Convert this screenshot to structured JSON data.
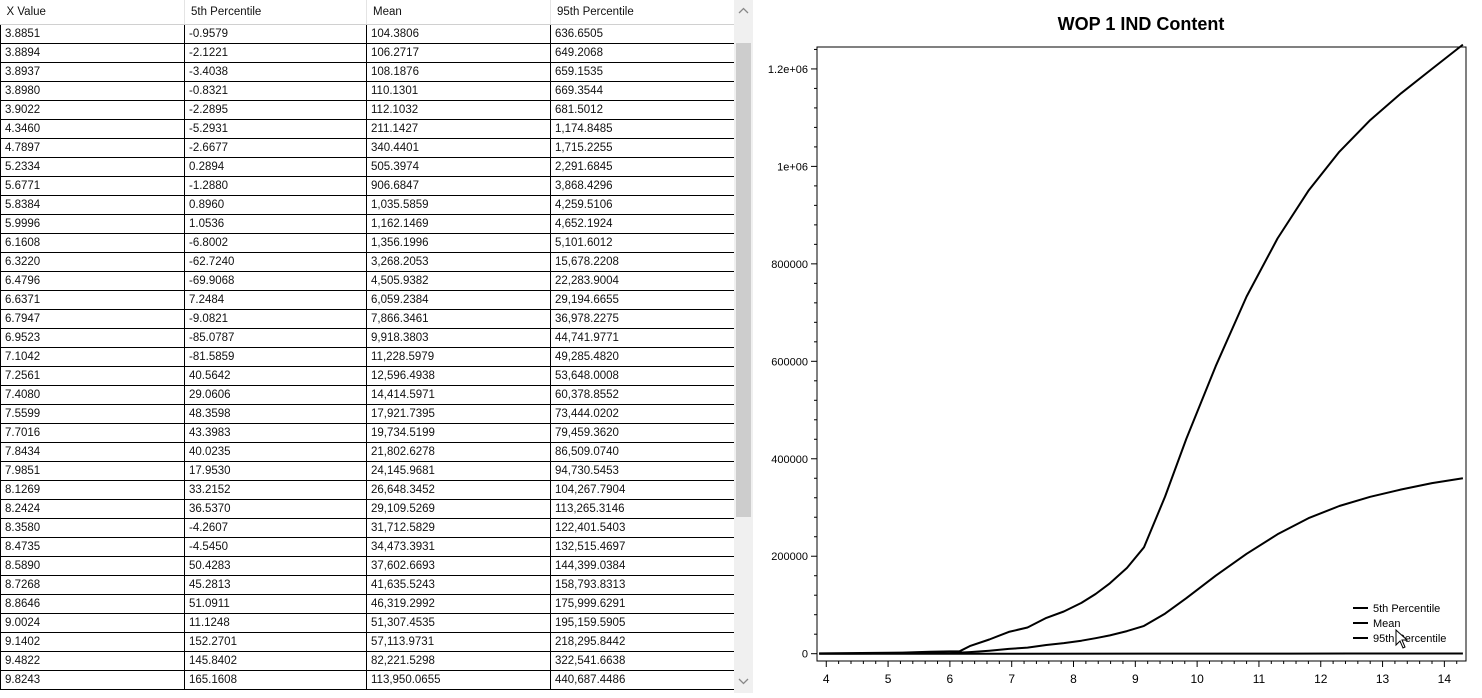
{
  "table": {
    "columns": [
      "X Value",
      "5th Percentile",
      "Mean",
      "95th Percentile"
    ],
    "rows": [
      [
        "3.8851",
        "-0.9579",
        "104.3806",
        "636.6505"
      ],
      [
        "3.8894",
        "-2.1221",
        "106.2717",
        "649.2068"
      ],
      [
        "3.8937",
        "-3.4038",
        "108.1876",
        "659.1535"
      ],
      [
        "3.8980",
        "-0.8321",
        "110.1301",
        "669.3544"
      ],
      [
        "3.9022",
        "-2.2895",
        "112.1032",
        "681.5012"
      ],
      [
        "4.3460",
        "-5.2931",
        "211.1427",
        "1,174.8485"
      ],
      [
        "4.7897",
        "-2.6677",
        "340.4401",
        "1,715.2255"
      ],
      [
        "5.2334",
        "0.2894",
        "505.3974",
        "2,291.6845"
      ],
      [
        "5.6771",
        "-1.2880",
        "906.6847",
        "3,868.4296"
      ],
      [
        "5.8384",
        "0.8960",
        "1,035.5859",
        "4,259.5106"
      ],
      [
        "5.9996",
        "1.0536",
        "1,162.1469",
        "4,652.1924"
      ],
      [
        "6.1608",
        "-6.8002",
        "1,356.1996",
        "5,101.6012"
      ],
      [
        "6.3220",
        "-62.7240",
        "3,268.2053",
        "15,678.2208"
      ],
      [
        "6.4796",
        "-69.9068",
        "4,505.9382",
        "22,283.9004"
      ],
      [
        "6.6371",
        "7.2484",
        "6,059.2384",
        "29,194.6655"
      ],
      [
        "6.7947",
        "-9.0821",
        "7,866.3461",
        "36,978.2275"
      ],
      [
        "6.9523",
        "-85.0787",
        "9,918.3803",
        "44,741.9771"
      ],
      [
        "7.1042",
        "-81.5859",
        "11,228.5979",
        "49,285.4820"
      ],
      [
        "7.2561",
        "40.5642",
        "12,596.4938",
        "53,648.0008"
      ],
      [
        "7.4080",
        "29.0606",
        "14,414.5971",
        "60,378.8552"
      ],
      [
        "7.5599",
        "48.3598",
        "17,921.7395",
        "73,444.0202"
      ],
      [
        "7.7016",
        "43.3983",
        "19,734.5199",
        "79,459.3620"
      ],
      [
        "7.8434",
        "40.0235",
        "21,802.6278",
        "86,509.0740"
      ],
      [
        "7.9851",
        "17.9530",
        "24,145.9681",
        "94,730.5453"
      ],
      [
        "8.1269",
        "33.2152",
        "26,648.3452",
        "104,267.7904"
      ],
      [
        "8.2424",
        "36.5370",
        "29,109.5269",
        "113,265.3146"
      ],
      [
        "8.3580",
        "-4.2607",
        "31,712.5829",
        "122,401.5403"
      ],
      [
        "8.4735",
        "-4.5450",
        "34,473.3931",
        "132,515.4697"
      ],
      [
        "8.5890",
        "50.4283",
        "37,602.6693",
        "144,399.0384"
      ],
      [
        "8.7268",
        "45.2813",
        "41,635.5243",
        "158,793.8313"
      ],
      [
        "8.8646",
        "51.0911",
        "46,319.2992",
        "175,999.6291"
      ],
      [
        "9.0024",
        "11.1248",
        "51,307.4535",
        "195,159.5905"
      ],
      [
        "9.1402",
        "152.2701",
        "57,113.9731",
        "218,295.8442"
      ],
      [
        "9.4822",
        "145.8402",
        "82,221.5298",
        "322,541.6638"
      ],
      [
        "9.8243",
        "165.1608",
        "113,950.0655",
        "440,687.4486"
      ]
    ]
  },
  "scrollbar": {
    "up_icon": "chevron-up-icon",
    "down_icon": "chevron-down-icon"
  },
  "chart": {
    "title": "WOP 1 IND Content"
  },
  "chart_data": {
    "type": "line",
    "title": "WOP 1 IND Content",
    "xlim": [
      3.85,
      14.35
    ],
    "ylim": [
      -15000,
      1245000
    ],
    "x_ticks": [
      4,
      5,
      6,
      7,
      8,
      9,
      10,
      11,
      12,
      13,
      14
    ],
    "y_ticks": [
      0,
      200000,
      400000,
      600000,
      800000,
      1000000,
      1200000
    ],
    "y_tick_labels": [
      "0",
      "200000",
      "400000",
      "600000",
      "800000",
      "1e+06",
      "1.2e+06"
    ],
    "legend": {
      "position": "bottom-right",
      "entries": [
        "5th Percentile",
        "Mean",
        "95th Percentile"
      ]
    },
    "grid": false,
    "series": [
      {
        "name": "5th Percentile",
        "x": [
          3.8851,
          6.1608,
          7.2561,
          9.1402,
          9.8243,
          10.5,
          11.5,
          12.5,
          13.5,
          14.3
        ],
        "y": [
          -1,
          -7,
          41,
          152,
          165,
          200,
          250,
          300,
          350,
          400
        ]
      },
      {
        "name": "Mean",
        "x": [
          3.8851,
          4.346,
          4.7897,
          5.2334,
          5.6771,
          5.9996,
          6.322,
          6.6371,
          6.9523,
          7.2561,
          7.5599,
          7.8434,
          8.1269,
          8.358,
          8.589,
          8.8646,
          9.1402,
          9.4822,
          9.8243,
          10.3,
          10.8,
          11.3,
          11.8,
          12.3,
          12.8,
          13.3,
          13.8,
          14.3
        ],
        "y": [
          104,
          211,
          340,
          505,
          907,
          1162,
          3268,
          6059,
          9918,
          12596,
          17922,
          21803,
          26648,
          31713,
          37603,
          46319,
          57114,
          82222,
          113950,
          160000,
          205000,
          245000,
          278000,
          303000,
          322000,
          337000,
          350000,
          360000
        ]
      },
      {
        "name": "95th Percentile",
        "x": [
          3.8851,
          4.346,
          4.7897,
          5.2334,
          5.6771,
          5.9996,
          6.1608,
          6.322,
          6.6371,
          6.9523,
          7.2561,
          7.5599,
          7.8434,
          8.1269,
          8.358,
          8.589,
          8.8646,
          9.1402,
          9.4822,
          9.8243,
          10.3,
          10.8,
          11.3,
          11.8,
          12.3,
          12.8,
          13.3,
          13.8,
          14.3
        ],
        "y": [
          637,
          1175,
          1715,
          2292,
          3868,
          4652,
          5102,
          15678,
          29195,
          44742,
          53648,
          73444,
          86509,
          104268,
          122402,
          144399,
          175999,
          218296,
          322542,
          440687,
          590000,
          733000,
          852000,
          950000,
          1030000,
          1095000,
          1150000,
          1200000,
          1250000
        ]
      }
    ]
  }
}
